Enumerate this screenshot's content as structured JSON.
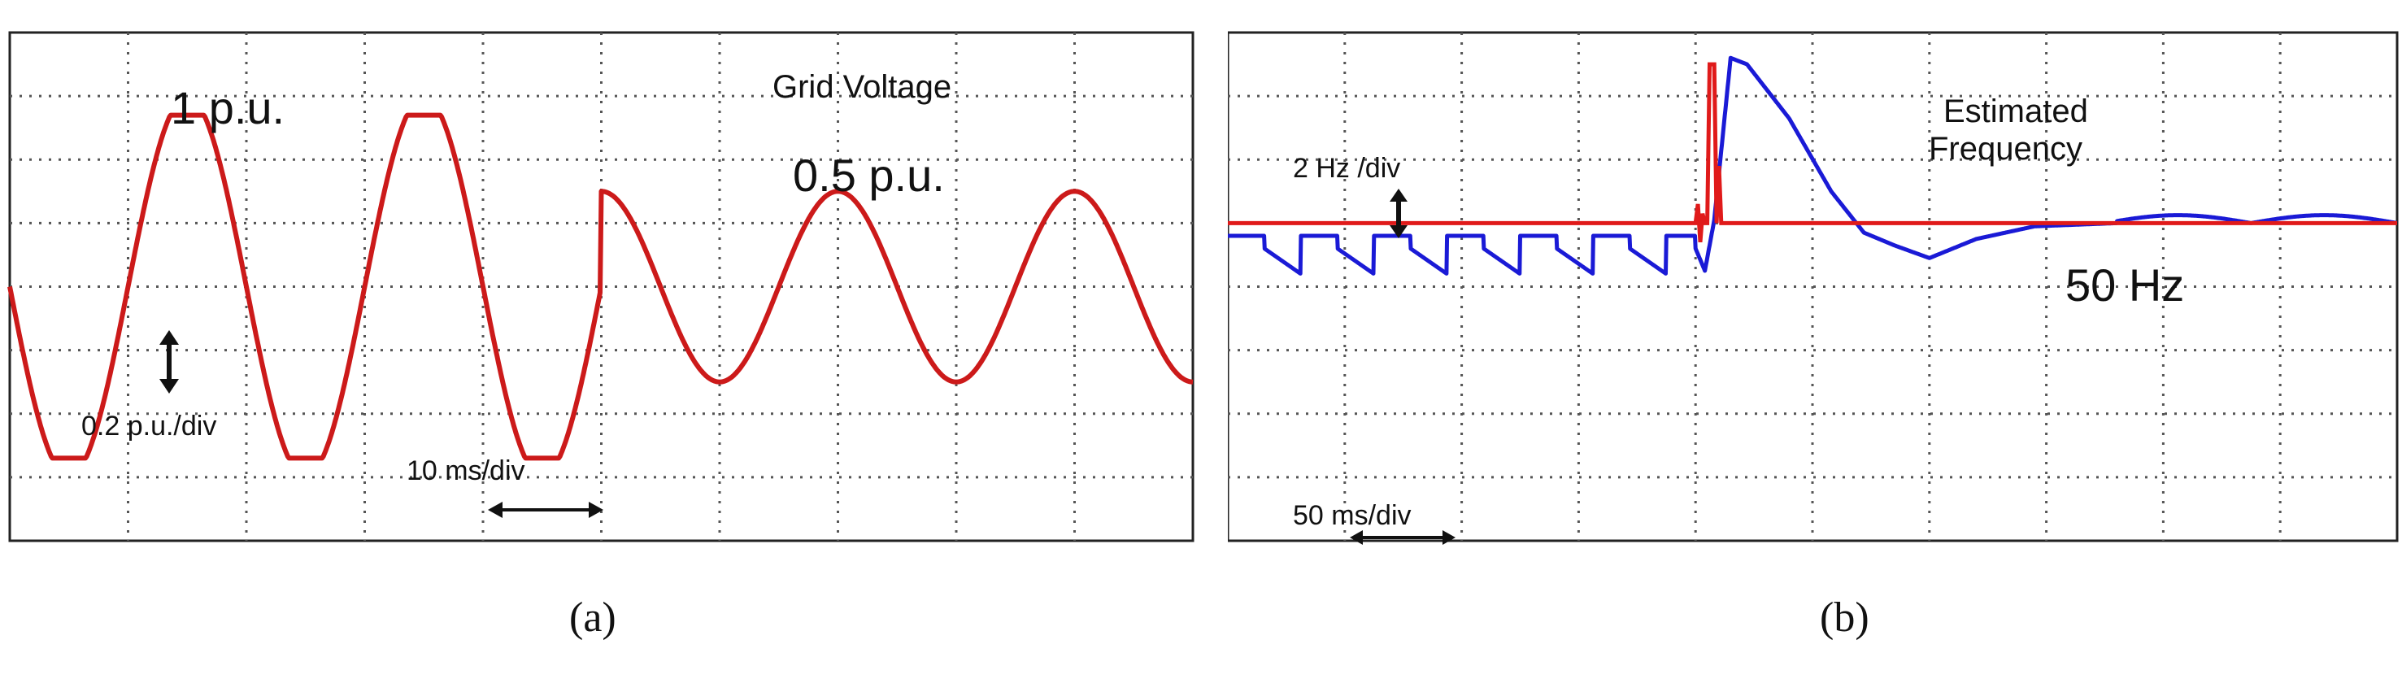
{
  "chart_data": [
    {
      "type": "line",
      "panel_label": "(a)",
      "annotations": {
        "title": "Grid Voltage",
        "level_before": "1 p.u.",
        "level_after": "0.5 p.u.",
        "vertical_scale": "0.2 p.u./div",
        "time_scale": "10 ms/div"
      },
      "grid": {
        "divisions_x": 10,
        "divisions_y": 8
      },
      "xunit": "ms",
      "yunit": "p.u.",
      "xlim": [
        0,
        100
      ],
      "ylim": [
        -0.8,
        0.8
      ],
      "series": [
        {
          "color": "#cc1a1a",
          "segments": [
            {
              "x_start": 0,
              "x_end": 50,
              "amplitude": 1.0,
              "frequency_hz": 50,
              "phase_deg": 180,
              "clip": 0.9
            },
            {
              "x_start": 50,
              "x_end": 100,
              "amplitude": 0.5,
              "frequency_hz": 50,
              "phase_deg": 90
            }
          ]
        }
      ]
    },
    {
      "type": "line",
      "panel_label": "(b)",
      "annotations": {
        "title_line1": "Estimated",
        "title_line2": "Frequency",
        "vertical_scale": "2 Hz /div",
        "time_scale": "50 ms/div",
        "steady_state": "50 Hz"
      },
      "grid": {
        "divisions_x": 10,
        "divisions_y": 8
      },
      "xunit": "ms",
      "yunit": "Hz",
      "xlim": [
        0,
        500
      ],
      "ylim": [
        40,
        56
      ],
      "series": [
        {
          "color": "#1a1ad6",
          "points": [
            [
              0,
              49.2
            ],
            [
              200,
              49.2
            ],
            [
              204,
              48.5
            ],
            [
              208,
              50.1
            ],
            [
              215,
              55.2
            ],
            [
              222,
              55.0
            ],
            [
              240,
              53.3
            ],
            [
              258,
              51.0
            ],
            [
              272,
              49.7
            ],
            [
              285,
              49.3
            ],
            [
              300,
              48.9
            ],
            [
              320,
              49.5
            ],
            [
              345,
              49.9
            ],
            [
              380,
              50.0
            ],
            [
              500,
              50.0
            ]
          ],
          "ripple_before_hz": 32,
          "ripple_after_hz": 16
        },
        {
          "color": "#e01a1a",
          "points": [
            [
              0,
              50.0
            ],
            [
              200,
              50.0
            ],
            [
              201,
              50.6
            ],
            [
              202,
              49.4
            ],
            [
              203,
              50.3
            ],
            [
              204,
              50.0
            ],
            [
              205,
              50.0
            ],
            [
              206,
              55.0
            ],
            [
              208,
              55.0
            ],
            [
              209,
              50.0
            ],
            [
              210,
              51.8
            ],
            [
              211,
              50.0
            ],
            [
              500,
              50.0
            ]
          ]
        }
      ]
    }
  ]
}
